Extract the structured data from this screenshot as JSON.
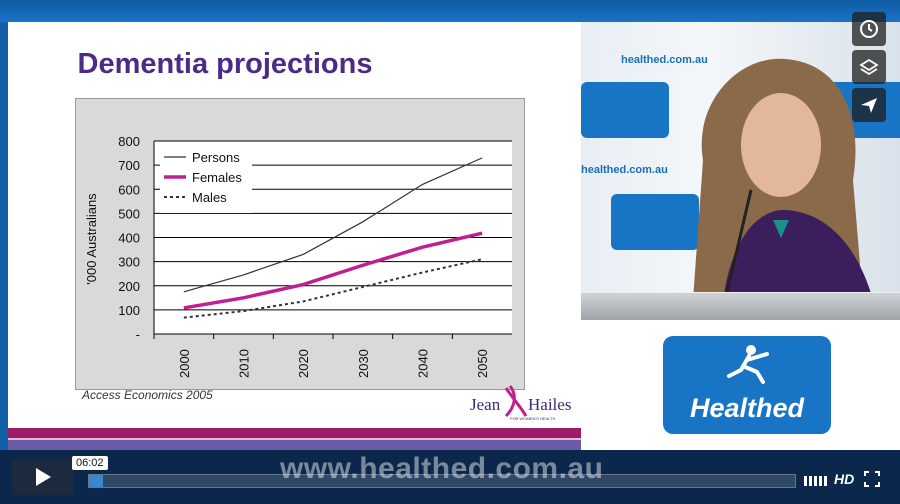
{
  "slide": {
    "title": "Dementia projections",
    "source": "Access Economics 2005",
    "logo_text": "Jean Hailes",
    "logo_subtext": "FOR WOMEN'S HEALTH"
  },
  "chart_data": {
    "type": "line",
    "ylabel": "'000 Australians",
    "xlabel": "",
    "x": [
      "2000",
      "2010",
      "2020",
      "2030",
      "2040",
      "2050"
    ],
    "y_ticks": [
      "-",
      "100",
      "200",
      "300",
      "400",
      "500",
      "600",
      "700",
      "800"
    ],
    "ylim": [
      0,
      800
    ],
    "grid": true,
    "legend_position": "top-left",
    "series": [
      {
        "name": "Persons",
        "values": [
          175,
          245,
          330,
          465,
          620,
          730
        ],
        "color": "#333333",
        "style": "solid-thin"
      },
      {
        "name": "Females",
        "values": [
          108,
          150,
          205,
          285,
          360,
          418
        ],
        "color": "#c0208f",
        "style": "solid-thick"
      },
      {
        "name": "Males",
        "values": [
          68,
          95,
          135,
          195,
          255,
          310
        ],
        "color": "#333333",
        "style": "dotted"
      }
    ]
  },
  "video_wall": {
    "brand": "Healthed",
    "url_text": "healthed.com.au"
  },
  "badge": {
    "brand": "Healthed"
  },
  "player": {
    "watermark": "www.healthed.com.au",
    "time": "06:02",
    "hd": "HD",
    "progress": 0.02
  }
}
